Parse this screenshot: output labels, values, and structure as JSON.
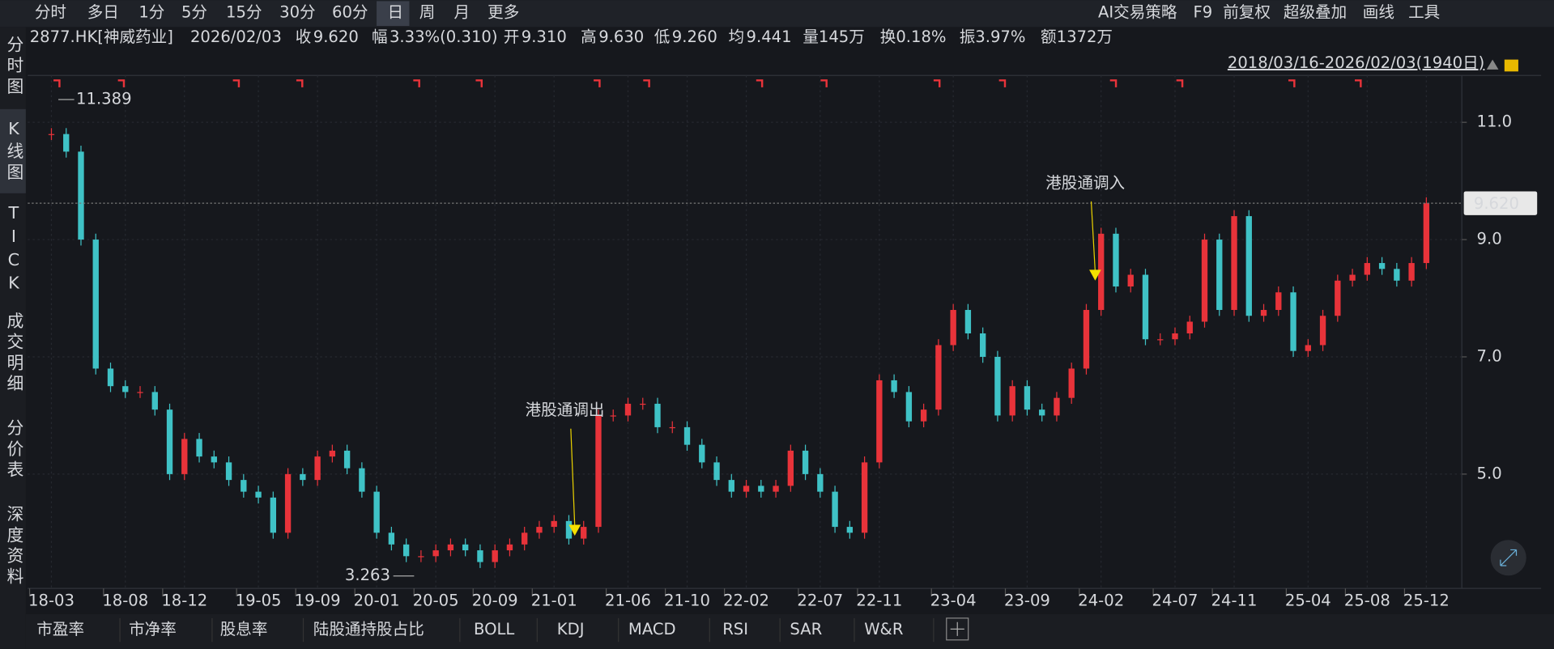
{
  "toolbar": {
    "periods": [
      "分时",
      "多日",
      "1分",
      "5分",
      "15分",
      "30分",
      "60分",
      "日",
      "周",
      "月",
      "更多"
    ],
    "tools": [
      "AI交易策略",
      "F9",
      "前复权",
      "超级叠加",
      "画线",
      "工具"
    ]
  },
  "sidebar": [
    "分时图",
    "K线图",
    "TICK",
    "成交明细",
    "分价表",
    "深度资料"
  ],
  "info": {
    "code": "2877.HK[神威药业]",
    "date": "2026/02/03",
    "close_key": "收",
    "close": "9.620",
    "change_key": "幅",
    "change": "3.33%(0.310)",
    "open_key": "开",
    "open": "9.310",
    "high_key": "高",
    "high": "9.630",
    "low_key": "低",
    "low": "9.260",
    "avg_key": "均",
    "avg": "9.441",
    "volume": "量145万",
    "turnover": "换0.18%",
    "amplitude": "振3.97%",
    "amount": "额1372万"
  },
  "range": "2018/03/16-2026/02/03(1940日)",
  "bottom_tabs": [
    "市盈率",
    "市净率",
    "股息率",
    "陆股通持股占比",
    "BOLL",
    "KDJ",
    "MACD",
    "RSI",
    "SAR",
    "W&R"
  ],
  "chart_data": {
    "type": "candle-close",
    "x": [
      0,
      1,
      2,
      3,
      4,
      5,
      6,
      7,
      8,
      9,
      10,
      11,
      12,
      13,
      14,
      15,
      16,
      17,
      18,
      19,
      20,
      21,
      22,
      23,
      24,
      25,
      26,
      27,
      28,
      29,
      30,
      31,
      32,
      33,
      34,
      35,
      36,
      37,
      38,
      39,
      40,
      41,
      42,
      43,
      44,
      45,
      46,
      47,
      48,
      49,
      50,
      51,
      52,
      53,
      54,
      55,
      56,
      57,
      58,
      59,
      60,
      61,
      62,
      63,
      64,
      65,
      66,
      67,
      68,
      69,
      70,
      71,
      72,
      73,
      74,
      75,
      76,
      77,
      78,
      79,
      80,
      81,
      82,
      83,
      84,
      85,
      86,
      87,
      88,
      89,
      90,
      91,
      92,
      93
    ],
    "values": [
      10.8,
      10.5,
      9.0,
      6.8,
      6.5,
      6.4,
      6.4,
      6.1,
      5.0,
      5.6,
      5.3,
      5.2,
      4.9,
      4.7,
      4.6,
      4.0,
      5.0,
      4.9,
      5.3,
      5.4,
      5.1,
      4.7,
      4.0,
      3.8,
      3.6,
      3.6,
      3.7,
      3.8,
      3.7,
      3.5,
      3.7,
      3.8,
      4.0,
      4.1,
      4.2,
      3.9,
      4.1,
      6.0,
      6.0,
      6.2,
      6.2,
      5.8,
      5.8,
      5.5,
      5.2,
      4.9,
      4.7,
      4.8,
      4.7,
      4.8,
      5.4,
      5.0,
      4.7,
      4.1,
      4.0,
      5.2,
      6.6,
      6.4,
      5.9,
      6.1,
      7.2,
      7.8,
      7.4,
      7.0,
      6.0,
      6.5,
      6.1,
      6.0,
      6.3,
      6.8,
      7.8,
      9.1,
      8.2,
      8.4,
      7.3,
      7.3,
      7.4,
      7.6,
      9.0,
      7.8,
      9.4,
      7.7,
      7.8,
      8.1,
      7.1,
      7.2,
      7.7,
      8.3,
      8.4,
      8.6,
      8.5,
      8.3,
      8.6,
      9.62
    ],
    "up_color": "#e8333a",
    "down_color": "#3fc2c6",
    "xlim": [
      -1.6,
      95.4
    ],
    "xticks": [
      {
        "value": 0,
        "label": "18-03"
      },
      {
        "value": 5,
        "label": "18-08"
      },
      {
        "value": 9,
        "label": "18-12"
      },
      {
        "value": 14,
        "label": "19-05"
      },
      {
        "value": 18,
        "label": "19-09"
      },
      {
        "value": 22,
        "label": "20-01"
      },
      {
        "value": 26,
        "label": "20-05"
      },
      {
        "value": 30,
        "label": "20-09"
      },
      {
        "value": 34,
        "label": "21-01"
      },
      {
        "value": 39,
        "label": "21-06"
      },
      {
        "value": 43,
        "label": "21-10"
      },
      {
        "value": 47,
        "label": "22-02"
      },
      {
        "value": 52,
        "label": "22-07"
      },
      {
        "value": 56,
        "label": "22-11"
      },
      {
        "value": 61,
        "label": "23-04"
      },
      {
        "value": 66,
        "label": "23-09"
      },
      {
        "value": 71,
        "label": "24-02"
      },
      {
        "value": 76,
        "label": "24-07"
      },
      {
        "value": 80,
        "label": "24-11"
      },
      {
        "value": 85,
        "label": "25-04"
      },
      {
        "value": 89,
        "label": "25-08"
      },
      {
        "value": 93,
        "label": "25-12"
      }
    ],
    "ylim": [
      3.05,
      11.8
    ],
    "yticks": [
      {
        "value": 11,
        "label": "11.0"
      },
      {
        "value": 9,
        "label": "9.0"
      },
      {
        "value": 7,
        "label": "7.0"
      },
      {
        "value": 5,
        "label": "5.0"
      }
    ],
    "grid": true,
    "last_price": {
      "value": 9.62,
      "label": "9.620"
    },
    "extremes": [
      {
        "x": 0.2,
        "value": 11.389,
        "color": "#e8333a"
      },
      {
        "x": 24.8,
        "value": 3.263,
        "color": "#2ec55a"
      }
    ],
    "annotations": [
      {
        "text": "港股通调出",
        "x": 35.4,
        "value": 3.95
      },
      {
        "text": "港股通调入",
        "x": 70.6,
        "value": 8.3
      }
    ]
  }
}
